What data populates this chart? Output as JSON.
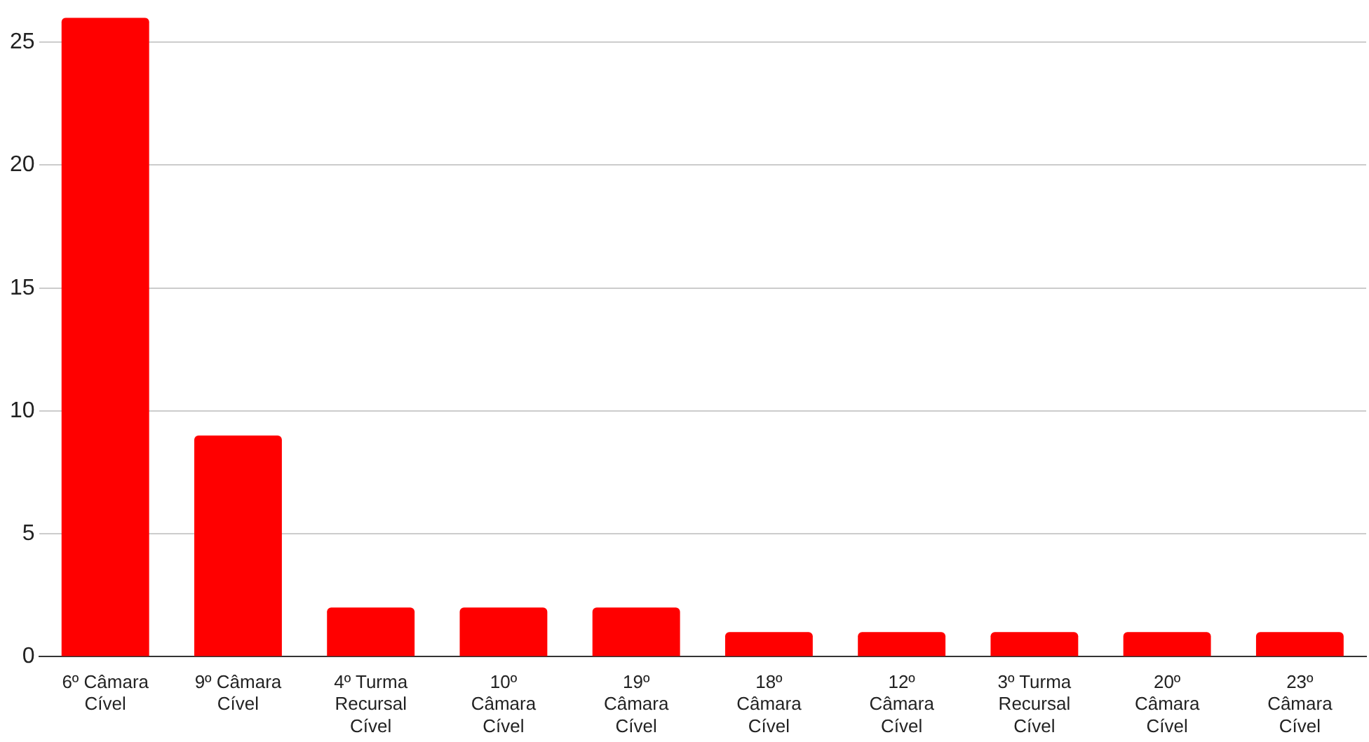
{
  "chart_data": {
    "type": "bar",
    "categories": [
      "6º Câmara Cível",
      "9º Câmara Cível",
      "4º Turma Recursal Cível",
      "10º Câmara Cível",
      "19º Câmara Cível",
      "18º Câmara Cível",
      "12º Câmara Cível",
      "3º Turma Recursal Cível",
      "20º Câmara Cível",
      "23º Câmara Cível"
    ],
    "values": [
      26,
      9,
      2,
      2,
      2,
      1,
      1,
      1,
      1,
      1
    ],
    "color": "#ff0000",
    "ylim": [
      0,
      26
    ],
    "yticks": [
      0,
      5,
      10,
      15,
      20,
      25
    ],
    "grid": "y",
    "legend": false
  }
}
